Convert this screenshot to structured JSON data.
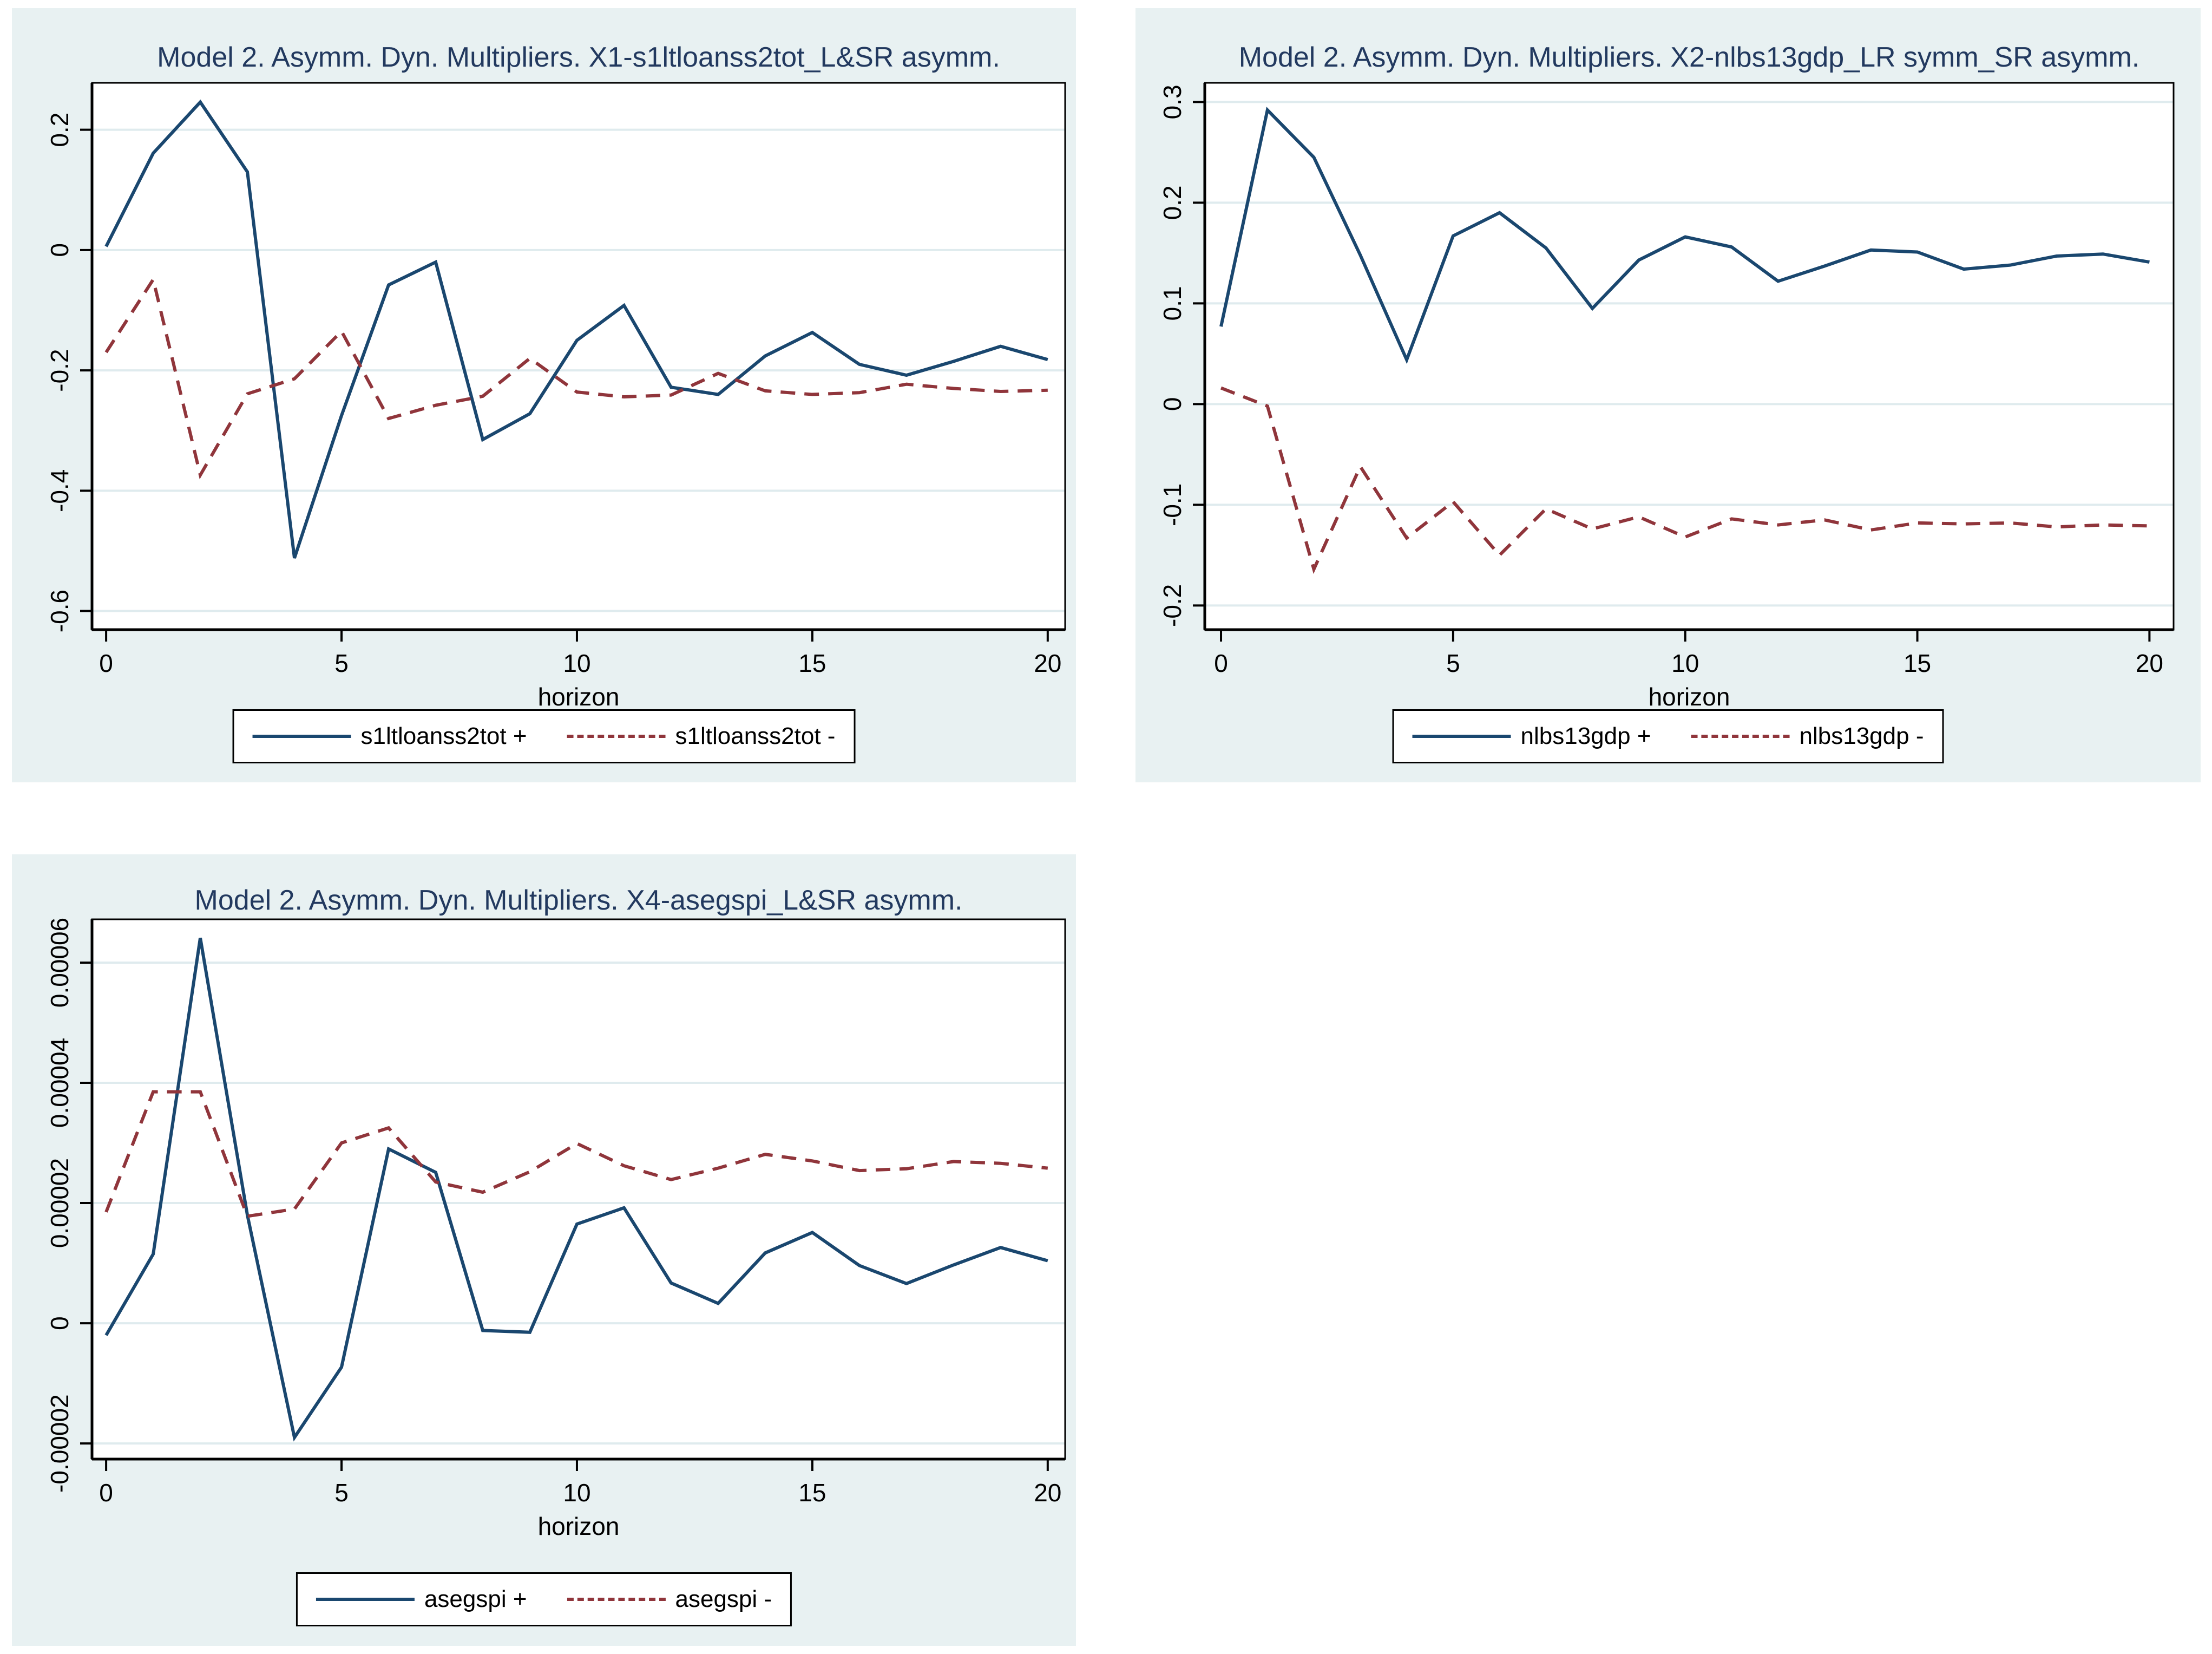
{
  "page": {
    "background_color": "#ffffff",
    "panel_background_color": "#e8f1f2",
    "plot_background_color": "#ffffff",
    "gridline_color": "#dfebee",
    "axis_color": "#000000",
    "title_color": "#22395f"
  },
  "chart_data": [
    {
      "type": "line",
      "title": "Model 2. Asymm. Dyn. Multipliers. X1-s1ltloanss2tot_L&SR asymm.",
      "xlabel": "horizon",
      "x": [
        0,
        1,
        2,
        3,
        4,
        5,
        6,
        7,
        8,
        9,
        10,
        11,
        12,
        13,
        14,
        15,
        16,
        17,
        18,
        19,
        20
      ],
      "series": [
        {
          "name": "s1ltloanss2tot_plus",
          "label": "s1ltloanss2tot +",
          "style": "solid",
          "color": "#1a476f",
          "values": [
            0.006,
            0.161,
            0.246,
            0.13,
            -0.512,
            -0.275,
            -0.058,
            -0.02,
            -0.315,
            -0.272,
            -0.15,
            -0.092,
            -0.228,
            -0.24,
            -0.176,
            -0.137,
            -0.19,
            -0.208,
            -0.185,
            -0.16,
            -0.182
          ]
        },
        {
          "name": "s1ltloanss2tot_minus",
          "label": "s1ltloanss2tot -",
          "style": "dashed",
          "color": "#90353b",
          "values": [
            -0.17,
            -0.049,
            -0.374,
            -0.239,
            -0.214,
            -0.135,
            -0.28,
            -0.258,
            -0.243,
            -0.18,
            -0.236,
            -0.244,
            -0.241,
            -0.205,
            -0.234,
            -0.24,
            -0.237,
            -0.223,
            -0.23,
            -0.235,
            -0.233
          ]
        }
      ],
      "axes": {
        "xlim": [
          -0.3,
          20.37
        ],
        "ylim": [
          -0.631,
          0.278
        ],
        "xticks": [
          0,
          5,
          10,
          15,
          20
        ],
        "xtick_labels": [
          "0",
          "5",
          "10",
          "15",
          "20"
        ],
        "yticks": [
          0.2,
          0,
          -0.2,
          -0.4,
          -0.6
        ],
        "ytick_labels": [
          "0.2",
          "0",
          "-0.2",
          "-0.4",
          "-0.6"
        ],
        "grid": true
      },
      "legend": {
        "position": "bottom-center",
        "entries": [
          "s1ltloanss2tot +",
          "s1ltloanss2tot -"
        ]
      }
    },
    {
      "type": "line",
      "title": "Model 2. Asymm. Dyn. Multipliers. X2-nlbs13gdp_LR symm_SR asymm.",
      "xlabel": "horizon",
      "x": [
        0,
        1,
        2,
        3,
        4,
        5,
        6,
        7,
        8,
        9,
        10,
        11,
        12,
        13,
        14,
        15,
        16,
        17,
        18,
        19,
        20
      ],
      "series": [
        {
          "name": "nlbs13gdp_plus",
          "label": "nlbs13gdp +",
          "style": "solid",
          "color": "#1a476f",
          "values": [
            0.077,
            0.292,
            0.245,
            0.148,
            0.044,
            0.167,
            0.19,
            0.155,
            0.095,
            0.143,
            0.166,
            0.156,
            0.122,
            0.137,
            0.153,
            0.151,
            0.134,
            0.138,
            0.147,
            0.149,
            0.141
          ]
        },
        {
          "name": "nlbs13gdp_minus",
          "label": "nlbs13gdp -",
          "style": "dashed",
          "color": "#90353b",
          "values": [
            0.016,
            -0.002,
            -0.164,
            -0.062,
            -0.133,
            -0.097,
            -0.15,
            -0.104,
            -0.124,
            -0.112,
            -0.132,
            -0.114,
            -0.12,
            -0.115,
            -0.125,
            -0.118,
            -0.119,
            -0.118,
            -0.122,
            -0.12,
            -0.121
          ]
        }
      ],
      "axes": {
        "xlim": [
          -0.35,
          20.52
        ],
        "ylim": [
          -0.224,
          0.319
        ],
        "xticks": [
          0,
          5,
          10,
          15,
          20
        ],
        "xtick_labels": [
          "0",
          "5",
          "10",
          "15",
          "20"
        ],
        "yticks": [
          0.3,
          0.2,
          0.1,
          0,
          -0.1,
          -0.2
        ],
        "ytick_labels": [
          "0.3",
          "0.2",
          "0.1",
          "0",
          "-0.1",
          "-0.2"
        ],
        "grid": true
      },
      "legend": {
        "position": "bottom-center",
        "entries": [
          "nlbs13gdp +",
          "nlbs13gdp -"
        ]
      }
    },
    {
      "type": "line",
      "title": "Model 2. Asymm. Dyn. Multipliers. X4-asegspi_L&SR asymm.",
      "xlabel": "horizon",
      "x": [
        0,
        1,
        2,
        3,
        4,
        5,
        6,
        7,
        8,
        9,
        10,
        11,
        12,
        13,
        14,
        15,
        16,
        17,
        18,
        19,
        20
      ],
      "series": [
        {
          "name": "asegspi_plus",
          "label": "asegspi +",
          "style": "solid",
          "color": "#1a476f",
          "values": [
            -2e-06,
            1.15e-05,
            6.41e-05,
            1.8e-05,
            -1.9e-05,
            -7.3e-06,
            2.9e-05,
            2.51e-05,
            -1.2e-06,
            -1.5e-06,
            1.65e-05,
            1.92e-05,
            6.7e-06,
            3.3e-06,
            1.17e-05,
            1.51e-05,
            9.6e-06,
            6.6e-06,
            9.7e-06,
            1.26e-05,
            1.04e-05
          ]
        },
        {
          "name": "asegspi_minus",
          "label": "asegspi -",
          "style": "dashed",
          "color": "#90353b",
          "values": [
            1.85e-05,
            3.85e-05,
            3.85e-05,
            1.78e-05,
            1.9e-05,
            3e-05,
            3.25e-05,
            2.35e-05,
            2.18e-05,
            2.52e-05,
            2.99e-05,
            2.62e-05,
            2.39e-05,
            2.58e-05,
            2.81e-05,
            2.7e-05,
            2.54e-05,
            2.57e-05,
            2.69e-05,
            2.66e-05,
            2.58e-05
          ]
        }
      ],
      "axes": {
        "xlim": [
          -0.3,
          20.37
        ],
        "ylim": [
          -2.26e-05,
          6.72e-05
        ],
        "xticks": [
          0,
          5,
          10,
          15,
          20
        ],
        "xtick_labels": [
          "0",
          "5",
          "10",
          "15",
          "20"
        ],
        "yticks": [
          6e-05,
          4e-05,
          2e-05,
          0,
          -2e-05
        ],
        "ytick_labels": [
          "0.00006",
          "0.00004",
          "0.00002",
          "0",
          "-0.00002"
        ],
        "grid": true
      },
      "legend": {
        "position": "bottom-center",
        "entries": [
          "asegspi +",
          "asegspi -"
        ]
      }
    }
  ]
}
